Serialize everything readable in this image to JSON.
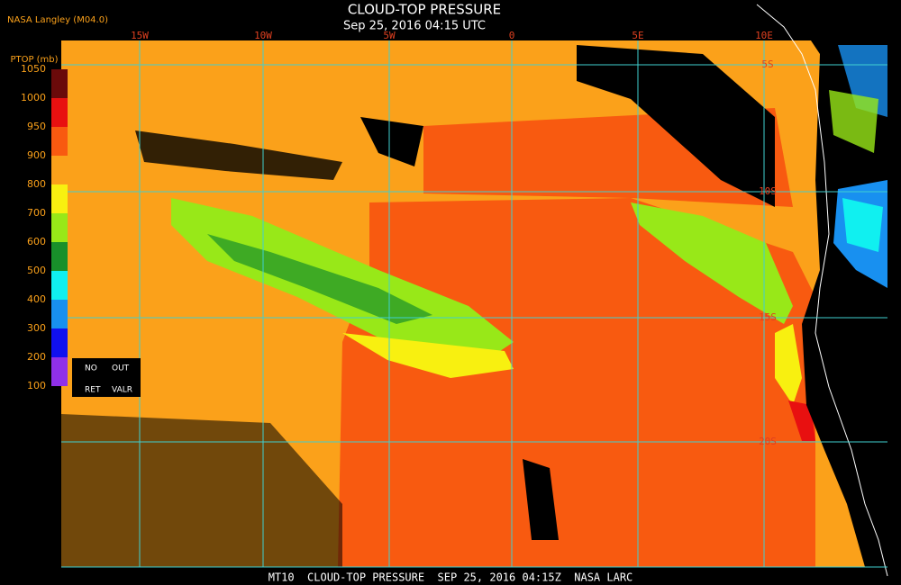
{
  "header": {
    "source": "NASA Langley (M04.0)",
    "title": "CLOUD-TOP PRESSURE",
    "subtitle": "Sep 25, 2016 04:15 UTC"
  },
  "colorbar": {
    "title": "PTOP (mb)",
    "labels": [
      1050,
      1000,
      950,
      900,
      800,
      700,
      600,
      500,
      400,
      300,
      200,
      100
    ],
    "colors": [
      "#6a0a0a",
      "#e81010",
      "#f85a10",
      "#fba11a",
      "#f8f010",
      "#98e818",
      "#18902a",
      "#10f0f0",
      "#1890f0",
      "#1010f0",
      "#9030e8"
    ],
    "legend_text": [
      "NO",
      "OUT",
      "RET",
      "VALR"
    ]
  },
  "map": {
    "longitude_labels": [
      "15W",
      "10W",
      "5W",
      "0",
      "5E",
      "10E"
    ],
    "latitude_labels": [
      "5S",
      "10S",
      "15S",
      "20S"
    ]
  },
  "footer": "MT10  CLOUD-TOP PRESSURE  SEP 25, 2016 04:15Z  NASA LARC"
}
